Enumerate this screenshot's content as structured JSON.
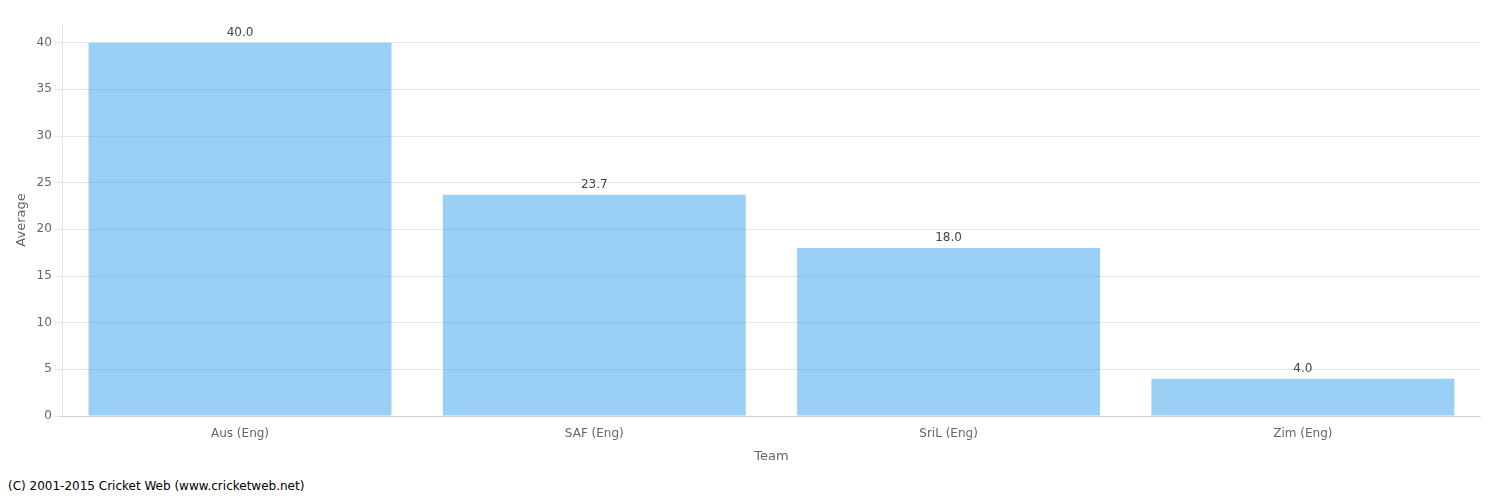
{
  "chart_data": {
    "type": "bar",
    "xlabel": "Team",
    "ylabel": "Average",
    "categories": [
      "Aus (Eng)",
      "SAF (Eng)",
      "SriL (Eng)",
      "Zim (Eng)"
    ],
    "values": [
      40.0,
      23.7,
      18.0,
      4.0
    ],
    "value_labels": [
      "40.0",
      "23.7",
      "18.0",
      "4.0"
    ],
    "data_labels": true,
    "ylim": [
      0,
      42
    ],
    "yticks": [
      0,
      5,
      10,
      15,
      20,
      25,
      30,
      35,
      40
    ],
    "grid": true,
    "annotations": [
      "(C) 2001-2015 Cricket Web (www.cricketweb.net)"
    ]
  }
}
